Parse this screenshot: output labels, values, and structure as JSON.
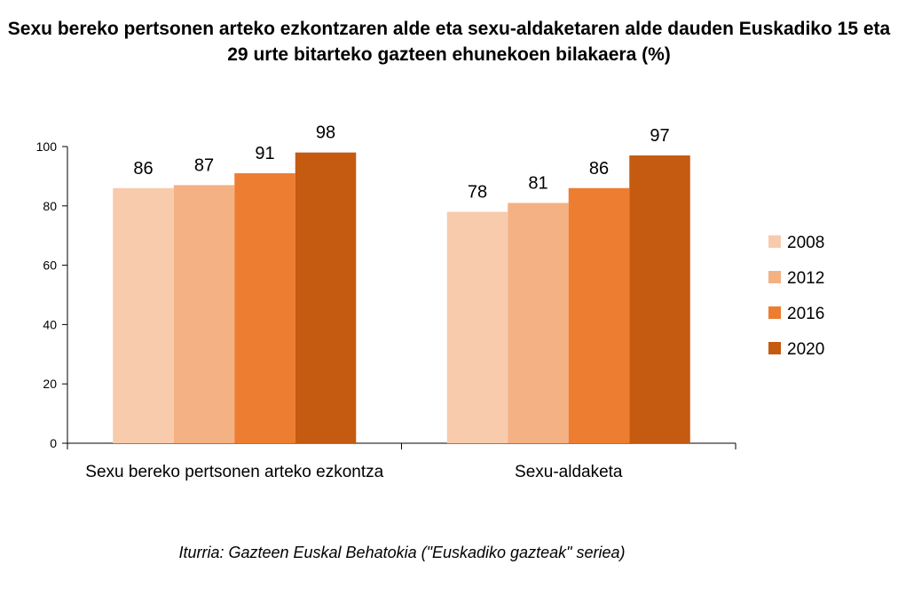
{
  "chart_data": {
    "type": "bar",
    "title": "Sexu bereko pertsonen arteko ezkontzaren alde eta sexu-aldaketaren alde dauden Euskadiko 15 eta 29 urte bitarteko gazteen ehunekoen bilakaera (%)",
    "xlabel": "",
    "ylabel": "",
    "ylim": [
      0,
      100
    ],
    "yticks": [
      0,
      20,
      40,
      60,
      80,
      100
    ],
    "categories": [
      "Sexu bereko pertsonen arteko ezkontza",
      "Sexu-aldaketa"
    ],
    "series": [
      {
        "name": "2008",
        "values": [
          86,
          78
        ],
        "color": "#F8CBAD"
      },
      {
        "name": "2012",
        "values": [
          87,
          81
        ],
        "color": "#F4B183"
      },
      {
        "name": "2016",
        "values": [
          91,
          86
        ],
        "color": "#ED7D31"
      },
      {
        "name": "2020",
        "values": [
          98,
          97
        ],
        "color": "#C55A11"
      }
    ],
    "legend_position": "right",
    "grid": false,
    "source": "Iturria: Gazteen Euskal Behatokia (\"Euskadiko gazteak\" seriea)"
  }
}
